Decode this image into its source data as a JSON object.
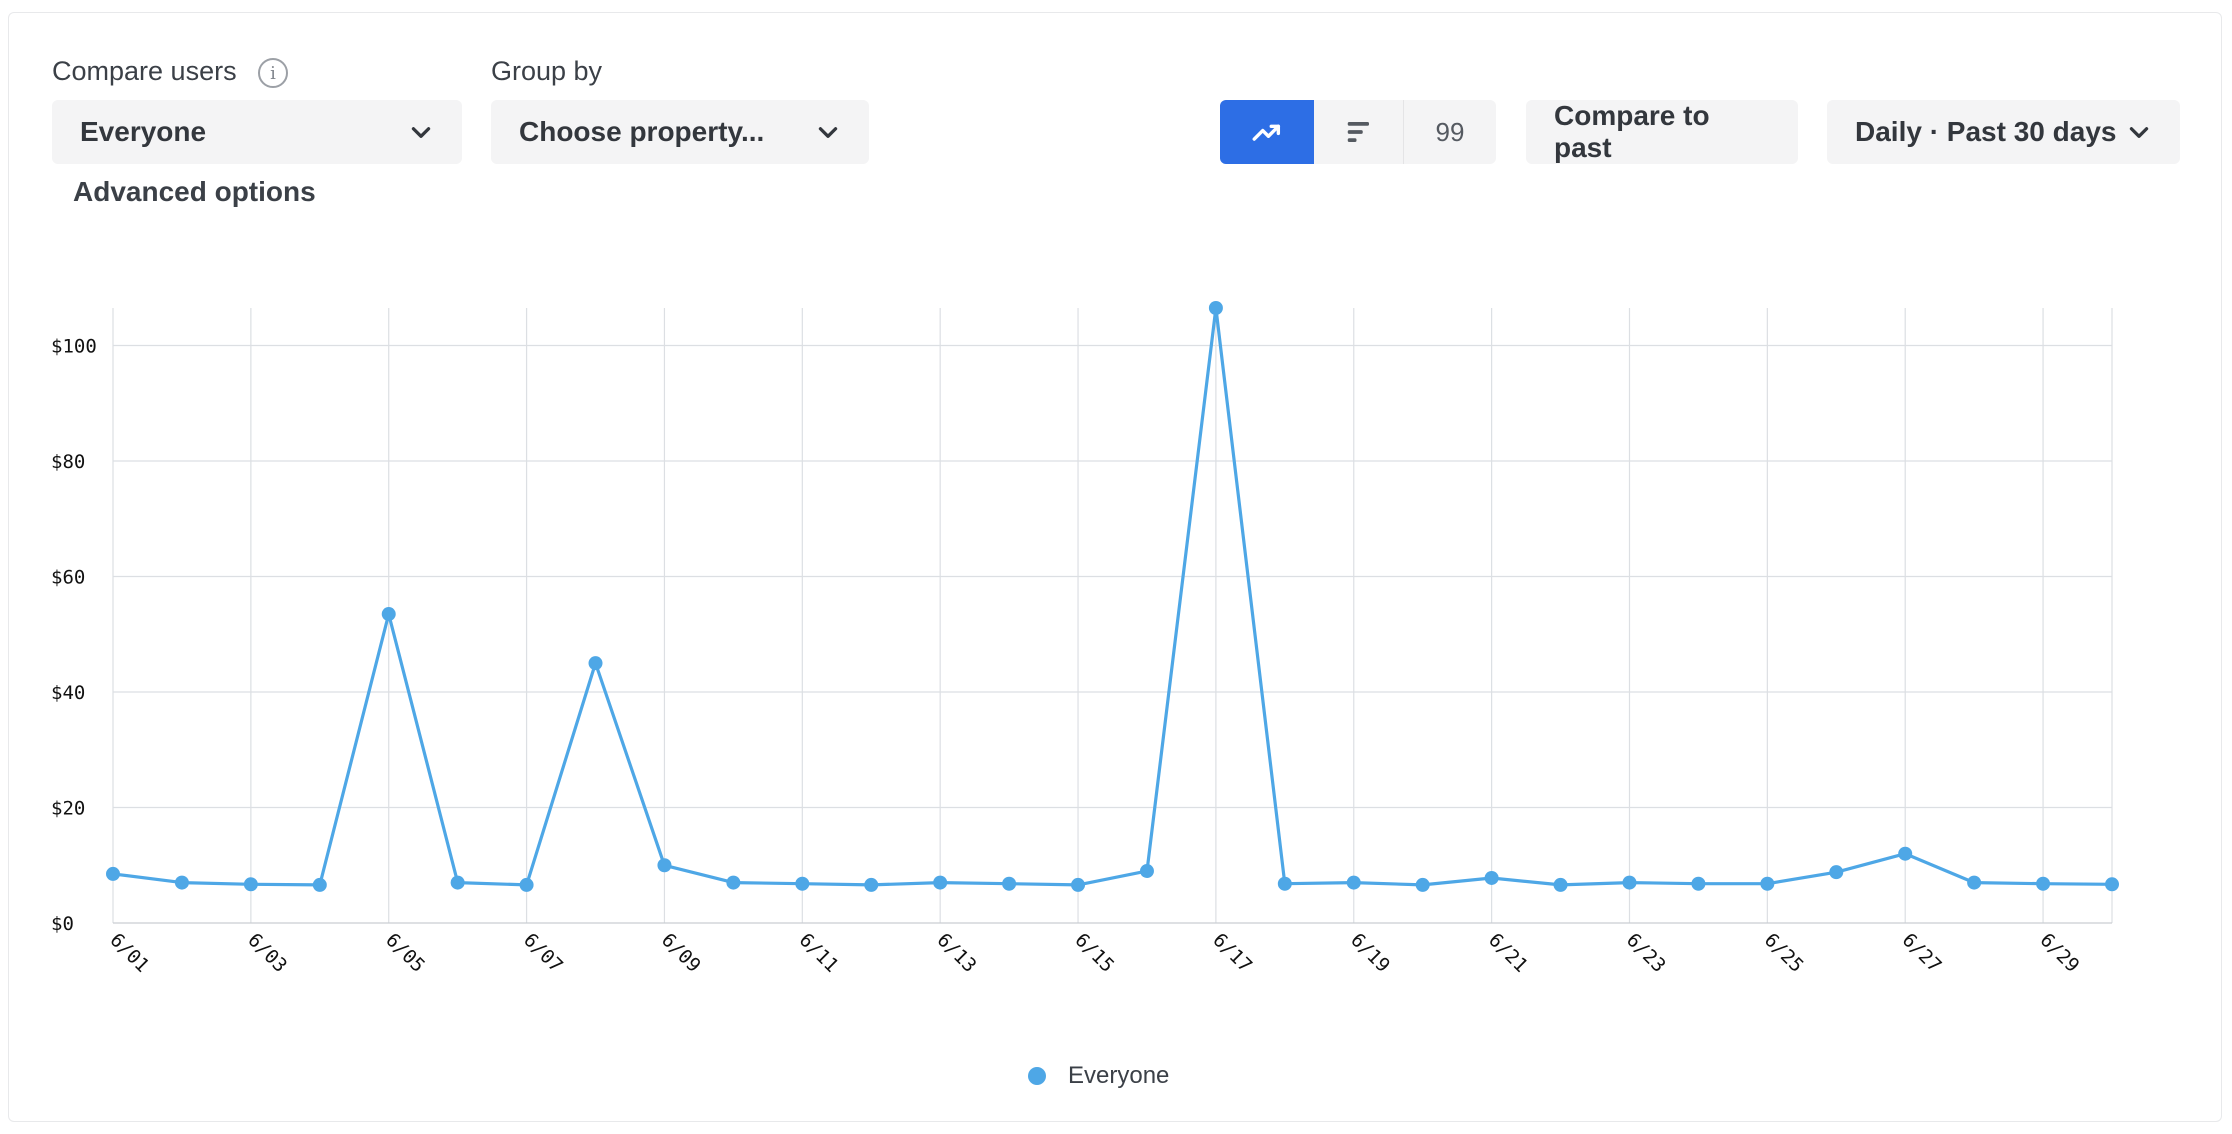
{
  "controls": {
    "compare_label": "Compare users",
    "compare_value": "Everyone",
    "group_label": "Group by",
    "group_value": "Choose property...",
    "count_value": "99",
    "compare_past": "Compare to past",
    "range": "Daily · Past 30 days",
    "advanced": "Advanced options",
    "info_glyph": "i"
  },
  "icons": {
    "line_mode": "trend-up-icon",
    "bar_mode": "bar-list-icon",
    "chevron": "chevron-down-icon"
  },
  "colors": {
    "series": "#4ea7e6",
    "accent": "#2d6ee5",
    "grid": "#dcdfe3"
  },
  "chart_data": {
    "type": "line",
    "x": [
      "6/01",
      "6/02",
      "6/03",
      "6/04",
      "6/05",
      "6/06",
      "6/07",
      "6/08",
      "6/09",
      "6/10",
      "6/11",
      "6/12",
      "6/13",
      "6/14",
      "6/15",
      "6/16",
      "6/17",
      "6/18",
      "6/19",
      "6/20",
      "6/21",
      "6/22",
      "6/23",
      "6/24",
      "6/25",
      "6/26",
      "6/27",
      "6/28",
      "6/29",
      "6/30"
    ],
    "x_tick_labels": [
      "6/01",
      "6/03",
      "6/05",
      "6/07",
      "6/09",
      "6/11",
      "6/13",
      "6/15",
      "6/17",
      "6/19",
      "6/21",
      "6/23",
      "6/25",
      "6/27",
      "6/29"
    ],
    "series": [
      {
        "name": "Everyone",
        "values": [
          8.5,
          7,
          6.7,
          6.6,
          53.5,
          7,
          6.6,
          45,
          10,
          7,
          6.8,
          6.6,
          7,
          6.8,
          6.6,
          9,
          106.5,
          6.8,
          7,
          6.6,
          7.8,
          6.6,
          7,
          6.8,
          6.8,
          8.8,
          12,
          7,
          6.8,
          6.7
        ]
      }
    ],
    "y_ticks": [
      0,
      20,
      40,
      60,
      80,
      100
    ],
    "y_tick_labels": [
      "$0",
      "$20",
      "$40",
      "$60",
      "$80",
      "$100"
    ],
    "ylim": [
      0,
      106.5
    ],
    "grid": true,
    "legend": "bottom-center"
  }
}
